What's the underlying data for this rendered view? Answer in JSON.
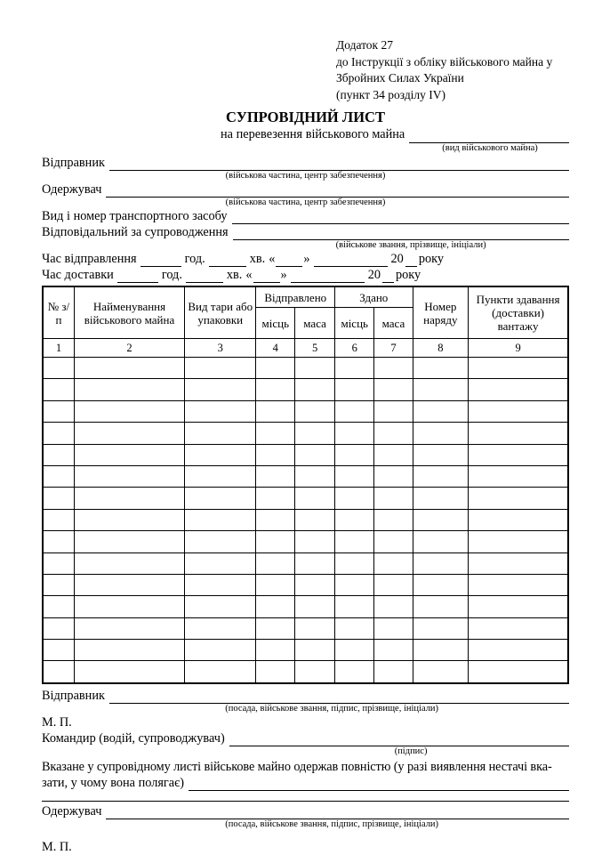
{
  "appendix": {
    "lines": [
      "Додаток 27",
      "до Інструкції з обліку військового майна у",
      "Збройних Силах України",
      "(пункт 34 розділу IV)"
    ]
  },
  "header": {
    "title": "СУПРОВІДНИЙ ЛИСТ",
    "subtitle": "на перевезення військового майна",
    "subtitle_caption": "(вид військового майна)"
  },
  "fields": {
    "sender": {
      "label": "Відправник",
      "caption": "(військова частина, центр забезпечення)",
      "value": ""
    },
    "receiver": {
      "label": "Одержувач",
      "caption": "(військова частина, центр забезпечення)",
      "value": ""
    },
    "transport": {
      "label": "Вид і номер транспортного засобу",
      "value": ""
    },
    "responsible": {
      "label": "Відповідальний за супроводження",
      "caption": "(військове звання, прізвище, ініціали)",
      "value": ""
    },
    "time_departure": {
      "label": "Час відправлення",
      "hour_label": "год.",
      "minute_label": "хв.",
      "quote_open": "«",
      "quote_close": "»",
      "year_prefix": "20",
      "year_suffix": "року"
    },
    "time_delivery": {
      "label": "Час доставки",
      "hour_label": "год.",
      "minute_label": "хв.",
      "quote_open": "«",
      "quote_close": "»",
      "year_prefix": "20",
      "year_suffix": "року"
    }
  },
  "table": {
    "headers": {
      "index": "№ з/п",
      "name": "Найменування військового майна",
      "packaging": "Вид тари або упаковки",
      "sent_group": "Відправлено",
      "delivered_group": "Здано",
      "places_sent": "місць",
      "mass_sent": "маса",
      "places_delivered": "місць",
      "mass_delivered": "маса",
      "order_number": "Номер наряду",
      "delivery_points": "Пункти здавання (доставки) вантажу"
    },
    "column_numbers": [
      "1",
      "2",
      "3",
      "4",
      "5",
      "6",
      "7",
      "8",
      "9"
    ],
    "empty_rows": 15
  },
  "footer": {
    "sender": {
      "label": "Відправник",
      "caption": "(посада, військове звання, підпис, прізвище, ініціали)",
      "value": ""
    },
    "stamp1": "М. П.",
    "commander": {
      "label": "Командир (водій, супроводжувач)",
      "caption": "(підпис)",
      "value": ""
    },
    "received_line1": "Вказане у супровідному листі військове майно одержав повністю (у разі виявлення нестачі вка-",
    "received_line2": "зати, у чому вона полягає)",
    "receiver": {
      "label": "Одержувач",
      "caption": "(посада, військове звання, підпис, прізвище, ініціали)",
      "value": ""
    },
    "stamp2": "М. П."
  }
}
